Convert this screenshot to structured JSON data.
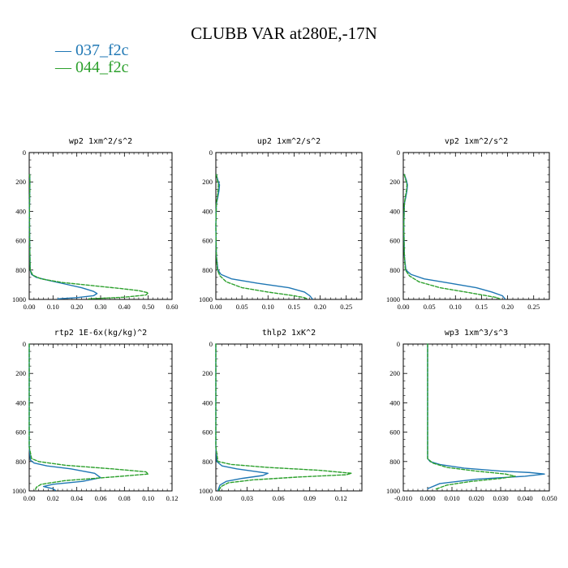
{
  "figure": {
    "title": "CLUBB VAR at280E,-17N",
    "legend": [
      {
        "label": "— 037_f2c",
        "color": "#1f77b4"
      },
      {
        "label": "— 044_f2c",
        "color": "#2ca02c"
      }
    ]
  },
  "chart_data": [
    {
      "type": "line",
      "title": "wp2  1xm^2/s^2",
      "xlim": [
        0,
        0.6
      ],
      "ylim": [
        0,
        1000
      ],
      "y_inverted": true,
      "xticks": [
        "0.00",
        "0.10",
        "0.20",
        "0.30",
        "0.40",
        "0.50",
        "0.60"
      ],
      "yticks": [
        "0",
        "200",
        "400",
        "600",
        "800",
        "1000"
      ],
      "series": [
        {
          "name": "037_f2c",
          "color": "#1f77b4",
          "dash": "solid",
          "x": [
            0.002,
            0.003,
            0.002,
            0.001,
            0.002,
            0.004,
            0.01,
            0.03,
            0.08,
            0.15,
            0.22,
            0.27,
            0.285,
            0.27,
            0.2,
            0.12
          ],
          "y": [
            150,
            200,
            300,
            400,
            600,
            800,
            830,
            850,
            870,
            895,
            920,
            945,
            960,
            975,
            988,
            996
          ]
        },
        {
          "name": "044_f2c",
          "color": "#2ca02c",
          "dash": "dashed",
          "x": [
            0.002,
            0.003,
            0.002,
            0.001,
            0.002,
            0.004,
            0.015,
            0.05,
            0.14,
            0.26,
            0.38,
            0.46,
            0.5,
            0.49,
            0.4,
            0.25
          ],
          "y": [
            150,
            200,
            300,
            400,
            600,
            800,
            835,
            860,
            885,
            905,
            925,
            940,
            955,
            970,
            985,
            996
          ]
        }
      ]
    },
    {
      "type": "line",
      "title": "up2  1xm^2/s^2",
      "xlim": [
        0,
        0.28
      ],
      "ylim": [
        0,
        1000
      ],
      "y_inverted": true,
      "xticks": [
        "0.00",
        "0.05",
        "0.10",
        "0.15",
        "0.20",
        "0.25"
      ],
      "yticks": [
        "0",
        "200",
        "400",
        "600",
        "800",
        "1000"
      ],
      "series": [
        {
          "name": "037_f2c",
          "color": "#1f77b4",
          "dash": "solid",
          "x": [
            0.001,
            0.004,
            0.007,
            0.006,
            0.004,
            0.001,
            0.0,
            0.001,
            0.004,
            0.01,
            0.03,
            0.08,
            0.14,
            0.17,
            0.18,
            0.185
          ],
          "y": [
            150,
            190,
            220,
            260,
            300,
            350,
            500,
            700,
            800,
            830,
            860,
            890,
            920,
            950,
            975,
            996
          ]
        },
        {
          "name": "044_f2c",
          "color": "#2ca02c",
          "dash": "dashed",
          "x": [
            0.001,
            0.003,
            0.005,
            0.004,
            0.003,
            0.001,
            0.0,
            0.001,
            0.003,
            0.008,
            0.02,
            0.05,
            0.1,
            0.15,
            0.17,
            0.175
          ],
          "y": [
            150,
            190,
            220,
            260,
            300,
            350,
            500,
            700,
            800,
            840,
            880,
            920,
            950,
            975,
            988,
            996
          ]
        }
      ]
    },
    {
      "type": "line",
      "title": "vp2  1xm^2/s^2",
      "xlim": [
        0,
        0.28
      ],
      "ylim": [
        0,
        1000
      ],
      "y_inverted": true,
      "xticks": [
        "0.00",
        "0.05",
        "0.10",
        "0.15",
        "0.20",
        "0.25"
      ],
      "yticks": [
        "0",
        "200",
        "400",
        "600",
        "800",
        "1000"
      ],
      "series": [
        {
          "name": "037_f2c",
          "color": "#1f77b4",
          "dash": "solid",
          "x": [
            0.002,
            0.006,
            0.008,
            0.007,
            0.005,
            0.002,
            0.001,
            0.002,
            0.005,
            0.015,
            0.04,
            0.09,
            0.14,
            0.17,
            0.19,
            0.195
          ],
          "y": [
            150,
            190,
            220,
            260,
            300,
            350,
            500,
            700,
            800,
            830,
            860,
            890,
            920,
            950,
            975,
            996
          ]
        },
        {
          "name": "044_f2c",
          "color": "#2ca02c",
          "dash": "dashed",
          "x": [
            0.002,
            0.005,
            0.007,
            0.006,
            0.004,
            0.002,
            0.001,
            0.002,
            0.004,
            0.012,
            0.03,
            0.07,
            0.12,
            0.16,
            0.18,
            0.185
          ],
          "y": [
            150,
            190,
            220,
            260,
            300,
            350,
            500,
            700,
            800,
            840,
            880,
            920,
            950,
            975,
            988,
            996
          ]
        }
      ]
    },
    {
      "type": "line",
      "title": "rtp2  1E-6x(kg/kg)^2",
      "xlim": [
        0,
        0.12
      ],
      "ylim": [
        0,
        1000
      ],
      "y_inverted": true,
      "xticks": [
        "0.00",
        "0.02",
        "0.04",
        "0.06",
        "0.08",
        "0.10",
        "0.12"
      ],
      "yticks": [
        "0",
        "200",
        "400",
        "600",
        "800",
        "1000"
      ],
      "series": [
        {
          "name": "037_f2c",
          "color": "#1f77b4",
          "dash": "solid",
          "x": [
            0.0,
            0.0,
            0.001,
            0.004,
            0.015,
            0.035,
            0.055,
            0.06,
            0.045,
            0.02,
            0.012,
            0.02,
            0.022
          ],
          "y": [
            0,
            700,
            790,
            810,
            830,
            850,
            880,
            910,
            935,
            955,
            970,
            985,
            996
          ]
        },
        {
          "name": "044_f2c",
          "color": "#2ca02c",
          "dash": "dashed",
          "x": [
            0.0,
            0.0,
            0.002,
            0.008,
            0.03,
            0.07,
            0.098,
            0.1,
            0.07,
            0.03,
            0.01,
            0.006,
            0.005
          ],
          "y": [
            0,
            700,
            780,
            800,
            825,
            850,
            870,
            885,
            905,
            930,
            955,
            975,
            996
          ]
        }
      ]
    },
    {
      "type": "line",
      "title": "thlp2  1xK^2",
      "xlim": [
        0,
        0.14
      ],
      "ylim": [
        0,
        1000
      ],
      "y_inverted": true,
      "xticks": [
        "0.00",
        "0.03",
        "0.06",
        "0.09",
        "0.12"
      ],
      "yticks": [
        "0",
        "200",
        "400",
        "600",
        "800",
        "1000"
      ],
      "series": [
        {
          "name": "037_f2c",
          "color": "#1f77b4",
          "dash": "solid",
          "x": [
            0.0,
            0.0,
            0.001,
            0.006,
            0.02,
            0.04,
            0.05,
            0.045,
            0.025,
            0.01,
            0.004,
            0.002
          ],
          "y": [
            0,
            700,
            800,
            830,
            850,
            870,
            880,
            895,
            915,
            935,
            960,
            996
          ]
        },
        {
          "name": "044_f2c",
          "color": "#2ca02c",
          "dash": "dashed",
          "x": [
            0.0,
            0.0,
            0.002,
            0.015,
            0.05,
            0.1,
            0.13,
            0.125,
            0.08,
            0.035,
            0.012,
            0.005,
            0.003
          ],
          "y": [
            0,
            700,
            800,
            820,
            840,
            860,
            880,
            890,
            905,
            925,
            945,
            970,
            996
          ]
        }
      ]
    },
    {
      "type": "line",
      "title": "wp3  1xm^3/s^3",
      "xlim": [
        -0.01,
        0.05
      ],
      "ylim": [
        0,
        1000
      ],
      "y_inverted": true,
      "xticks": [
        "-0.010",
        "0.000",
        "0.010",
        "0.020",
        "0.030",
        "0.040",
        "0.050"
      ],
      "yticks": [
        "0",
        "200",
        "400",
        "600",
        "800",
        "1000"
      ],
      "series": [
        {
          "name": "037_f2c",
          "color": "#1f77b4",
          "dash": "solid",
          "x": [
            0.0,
            0.0,
            0.0,
            0.001,
            0.005,
            0.015,
            0.03,
            0.042,
            0.048,
            0.04,
            0.02,
            0.005,
            0.0
          ],
          "y": [
            0,
            200,
            780,
            800,
            820,
            845,
            865,
            875,
            885,
            900,
            920,
            950,
            985
          ]
        },
        {
          "name": "044_f2c",
          "color": "#2ca02c",
          "dash": "dashed",
          "x": [
            0.0,
            0.0,
            0.0,
            0.002,
            0.008,
            0.02,
            0.032,
            0.036,
            0.03,
            0.018,
            0.008,
            0.003
          ],
          "y": [
            0,
            200,
            780,
            810,
            840,
            865,
            885,
            900,
            915,
            935,
            960,
            990
          ]
        }
      ]
    }
  ]
}
